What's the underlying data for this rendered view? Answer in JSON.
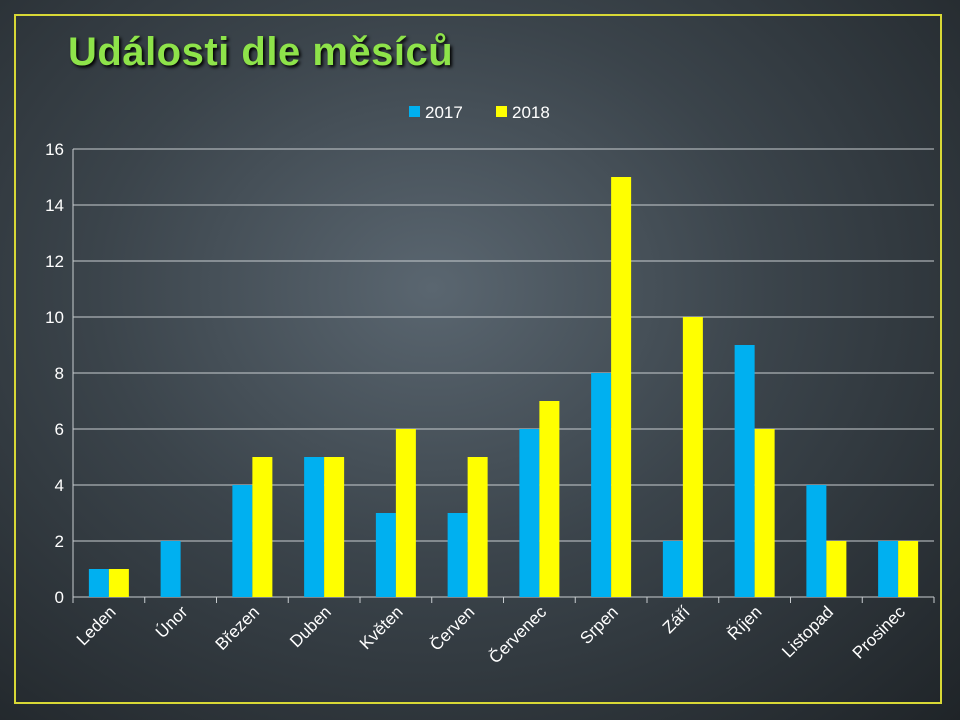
{
  "title": "Události dle měsíců",
  "colors": {
    "s2017": "#00b0f0",
    "s2018": "#ffff00",
    "accent_title": "#8ee34a",
    "frame": "#d8d836"
  },
  "chart_data": {
    "type": "bar",
    "title": "Události dle měsíců",
    "categories": [
      "Leden",
      "Únor",
      "Březen",
      "Duben",
      "Květen",
      "Červen",
      "Červenec",
      "Srpen",
      "Září",
      "Říjen",
      "Listopad",
      "Prosinec"
    ],
    "series": [
      {
        "name": "2017",
        "values": [
          1,
          2,
          4,
          5,
          3,
          3,
          6,
          8,
          2,
          9,
          4,
          2
        ]
      },
      {
        "name": "2018",
        "values": [
          1,
          0,
          5,
          5,
          6,
          5,
          7,
          15,
          10,
          6,
          2,
          2
        ]
      }
    ],
    "ylim": [
      0,
      16
    ],
    "yticks": [
      0,
      2,
      4,
      6,
      8,
      10,
      12,
      14,
      16
    ],
    "grid": true,
    "legend": "top-center"
  }
}
